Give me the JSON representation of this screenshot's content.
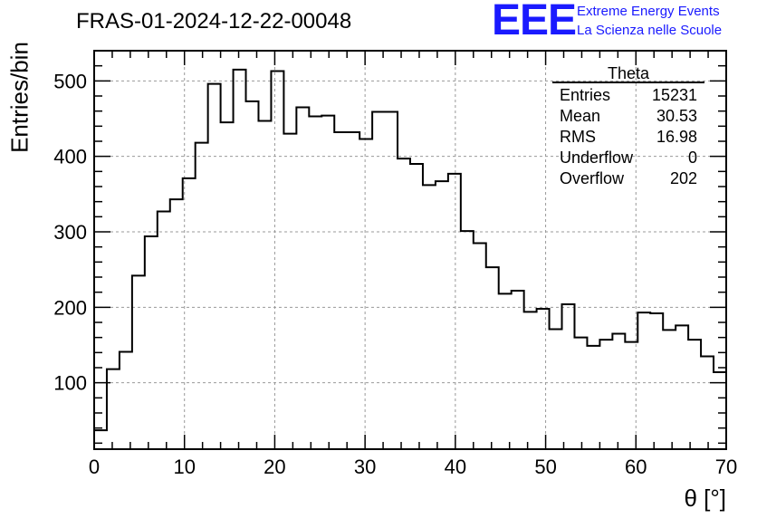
{
  "header": {
    "title": "FRAS-01-2024-12-22-00048",
    "logo_text": "EEE",
    "org_line1": "Extreme Energy Events",
    "org_line2": "La Scienza nelle Scuole"
  },
  "colors": {
    "logo": "#1a1aff",
    "line": "#000000",
    "grid": "#999999"
  },
  "stats": {
    "title": "Theta",
    "rows": [
      {
        "label": "Entries",
        "value": "15231"
      },
      {
        "label": "Mean",
        "value": "30.53"
      },
      {
        "label": "RMS",
        "value": "16.98"
      },
      {
        "label": "Underflow",
        "value": "0"
      },
      {
        "label": "Overflow",
        "value": "202"
      }
    ]
  },
  "chart_data": {
    "type": "histogram",
    "title": "FRAS-01-2024-12-22-00048",
    "xlabel": "θ [°]",
    "ylabel": "Entries/bin",
    "xlim": [
      0,
      70
    ],
    "ylim": [
      12,
      540
    ],
    "grid": true,
    "legend_position": "top-right",
    "xticks": [
      0,
      10,
      20,
      30,
      40,
      50,
      60,
      70
    ],
    "yticks": [
      100,
      200,
      300,
      400,
      500
    ],
    "bin_edges": [
      0,
      1.4,
      2.8,
      4.2,
      5.6,
      7,
      8.4,
      9.8,
      11.2,
      12.6,
      14,
      15.4,
      16.8,
      18.2,
      19.6,
      21,
      22.4,
      23.8,
      25.2,
      26.6,
      28,
      29.4,
      30.8,
      32.2,
      33.6,
      35,
      36.4,
      37.8,
      39.2,
      40.6,
      42,
      43.4,
      44.8,
      46.2,
      47.6,
      49,
      50.4,
      51.8,
      53.2,
      54.6,
      56,
      57.4,
      58.8,
      60.2,
      61.6,
      63,
      64.4,
      65.8,
      67.2,
      68.6,
      70
    ],
    "values": [
      37,
      118,
      141,
      242,
      294,
      327,
      343,
      371,
      418,
      496,
      445,
      515,
      473,
      447,
      513,
      430,
      465,
      453,
      454,
      432,
      432,
      423,
      459,
      459,
      397,
      390,
      362,
      367,
      377,
      301,
      285,
      253,
      218,
      222,
      194,
      198,
      171,
      204,
      160,
      149,
      157,
      165,
      154,
      193,
      192,
      170,
      176,
      157,
      135,
      114
    ]
  }
}
